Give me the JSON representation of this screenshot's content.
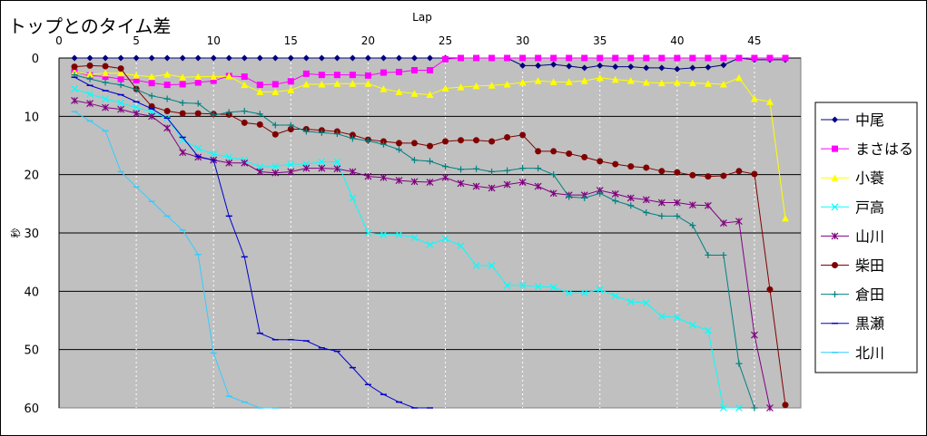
{
  "chart_data": {
    "type": "line",
    "title": "トップとのタイム差",
    "xlabel": "Lap",
    "ylabel": "秒",
    "xlim": [
      0,
      48
    ],
    "ylim": [
      0,
      60
    ],
    "y_inverted": true,
    "x_ticks": [
      0,
      5,
      10,
      15,
      20,
      25,
      30,
      35,
      40,
      45
    ],
    "y_ticks": [
      0,
      10,
      20,
      30,
      40,
      50,
      60
    ],
    "plot_background": "#c0c0c0",
    "grid": "horizontal solid, vertical dotted",
    "legend_position": "right",
    "series": [
      {
        "name": "中尾",
        "color": "#000080",
        "marker": "diamond",
        "x": [
          1,
          2,
          3,
          4,
          5,
          6,
          7,
          8,
          9,
          10,
          11,
          12,
          13,
          14,
          15,
          16,
          17,
          18,
          19,
          20,
          21,
          22,
          23,
          24,
          25,
          26,
          27,
          28,
          29,
          30,
          31,
          32,
          33,
          34,
          35,
          36,
          37,
          38,
          39,
          40,
          41,
          42,
          43,
          44,
          45,
          46,
          47
        ],
        "y": [
          0,
          0,
          0,
          0,
          0,
          0,
          0,
          0,
          0,
          0,
          0,
          0,
          0,
          0,
          0,
          0,
          0,
          0,
          0,
          0,
          0,
          0,
          0,
          0,
          0,
          0,
          0,
          0,
          0,
          1.3,
          1.3,
          1.1,
          1.4,
          1.7,
          1.3,
          1.5,
          1.5,
          1.7,
          1.7,
          1.9,
          1.7,
          1.6,
          1.2,
          0,
          0.3,
          0.3,
          0.3
        ]
      },
      {
        "name": "まさはる",
        "color": "#ff00ff",
        "marker": "square",
        "x": [
          1,
          2,
          3,
          4,
          5,
          6,
          7,
          8,
          9,
          10,
          11,
          12,
          13,
          14,
          15,
          16,
          17,
          18,
          19,
          20,
          21,
          22,
          23,
          24,
          25,
          26,
          27,
          28,
          29,
          30,
          31,
          32,
          33,
          34,
          35,
          36,
          37,
          38,
          39,
          40,
          41,
          42,
          43,
          44,
          45,
          46,
          47
        ],
        "y": [
          2.4,
          3,
          3.2,
          3.6,
          3.8,
          4.3,
          4.6,
          4.5,
          4.2,
          3.9,
          3.1,
          3.2,
          4.6,
          4.5,
          4,
          2.7,
          2.9,
          2.9,
          2.9,
          3,
          2.5,
          2.4,
          2.1,
          2.1,
          0.2,
          0,
          0,
          0,
          0,
          0,
          0,
          0,
          0,
          0,
          0,
          0,
          0,
          0,
          0,
          0,
          0,
          0,
          0,
          0,
          0,
          0,
          0
        ]
      },
      {
        "name": "小蓑",
        "color": "#ffff00",
        "marker": "triangle",
        "x": [
          1,
          2,
          3,
          4,
          5,
          6,
          7,
          8,
          9,
          10,
          11,
          12,
          13,
          14,
          15,
          16,
          17,
          18,
          19,
          20,
          21,
          22,
          23,
          24,
          25,
          26,
          27,
          28,
          29,
          30,
          31,
          32,
          33,
          34,
          35,
          36,
          37,
          38,
          39,
          40,
          41,
          42,
          43,
          44,
          45,
          46,
          47
        ],
        "y": [
          2.4,
          2.8,
          2.6,
          2.6,
          3,
          3.2,
          2.8,
          3.3,
          3.2,
          3.2,
          3.1,
          4.6,
          5.8,
          5.8,
          5.5,
          4.5,
          4.5,
          4.4,
          4.4,
          4.4,
          5.3,
          5.8,
          6.1,
          6.3,
          5.2,
          5,
          4.8,
          4.7,
          4.5,
          4.2,
          3.9,
          4.1,
          4.1,
          3.9,
          3.4,
          3.7,
          3.9,
          4.2,
          4.3,
          4.2,
          4.3,
          4.4,
          4.5,
          3.4,
          7,
          7.5,
          27.5
        ]
      },
      {
        "name": "戸高",
        "color": "#00ffff",
        "marker": "x",
        "x": [
          1,
          2,
          3,
          4,
          5,
          6,
          7,
          8,
          9,
          10,
          11,
          12,
          13,
          14,
          15,
          16,
          17,
          18,
          19,
          20,
          21,
          22,
          23,
          24,
          25,
          26,
          27,
          28,
          29,
          30,
          31,
          32,
          33,
          34,
          35,
          36,
          37,
          38,
          39,
          40,
          41,
          42,
          43,
          44
        ],
        "y": [
          5.3,
          6.2,
          7,
          7.7,
          8.5,
          9.2,
          10.3,
          14,
          15.5,
          16.5,
          17,
          17.5,
          18.7,
          18.6,
          18.2,
          18.2,
          17.8,
          17.8,
          24,
          30,
          30.3,
          30.3,
          30.8,
          32,
          31,
          32.2,
          35.6,
          35.6,
          39,
          39,
          39.2,
          39.3,
          40.3,
          40.3,
          39.7,
          40.8,
          41.8,
          42,
          44.3,
          44.5,
          45.8,
          46.7,
          60,
          60
        ]
      },
      {
        "name": "山川",
        "color": "#800080",
        "marker": "asterisk",
        "x": [
          1,
          2,
          3,
          4,
          5,
          6,
          7,
          8,
          9,
          10,
          11,
          12,
          13,
          14,
          15,
          16,
          17,
          18,
          19,
          20,
          21,
          22,
          23,
          24,
          25,
          26,
          27,
          28,
          29,
          30,
          31,
          32,
          33,
          34,
          35,
          36,
          37,
          38,
          39,
          40,
          41,
          42,
          43,
          44,
          45,
          46
        ],
        "y": [
          7.3,
          7.8,
          8.5,
          8.8,
          9.5,
          10,
          12,
          16.2,
          17,
          17.5,
          18,
          18,
          19.5,
          19.7,
          19.5,
          18.9,
          18.9,
          19,
          19.5,
          20.3,
          20.5,
          21,
          21.2,
          21.3,
          20.5,
          21.5,
          22,
          22.3,
          21.7,
          21.3,
          22,
          23.2,
          23.5,
          23.5,
          22.7,
          23.3,
          24,
          24.3,
          24.8,
          24.8,
          25.2,
          25.3,
          28.3,
          28,
          47.5,
          60
        ]
      },
      {
        "name": "柴田",
        "color": "#800000",
        "marker": "circle",
        "x": [
          1,
          2,
          3,
          4,
          5,
          6,
          7,
          8,
          9,
          10,
          11,
          12,
          13,
          14,
          15,
          16,
          17,
          18,
          19,
          20,
          21,
          22,
          23,
          24,
          25,
          26,
          27,
          28,
          29,
          30,
          31,
          32,
          33,
          34,
          35,
          36,
          37,
          38,
          39,
          40,
          41,
          42,
          43,
          44,
          45,
          46,
          47
        ],
        "y": [
          1.5,
          1.3,
          1.4,
          1.8,
          5.3,
          8.3,
          9.1,
          9.5,
          9.5,
          9.6,
          9.7,
          11.1,
          11.4,
          13.1,
          12.2,
          12.2,
          12.4,
          12.6,
          13.2,
          14,
          14.3,
          14.6,
          14.6,
          15.1,
          14.3,
          14.1,
          14.1,
          14.3,
          13.6,
          13.2,
          16,
          16,
          16.4,
          17,
          17.7,
          18.2,
          18.6,
          18.8,
          19.4,
          19.6,
          20.1,
          20.3,
          20.2,
          19.4,
          19.9,
          39.7,
          59.5
        ]
      },
      {
        "name": "倉田",
        "color": "#008080",
        "marker": "plus",
        "x": [
          1,
          2,
          3,
          4,
          5,
          6,
          7,
          8,
          9,
          10,
          11,
          12,
          13,
          14,
          15,
          16,
          17,
          18,
          19,
          20,
          21,
          22,
          23,
          24,
          25,
          26,
          27,
          28,
          29,
          30,
          31,
          32,
          33,
          34,
          35,
          36,
          37,
          38,
          39,
          40,
          41,
          42,
          43,
          44,
          45
        ],
        "y": [
          2.9,
          3.6,
          4.2,
          4.6,
          5.4,
          6.5,
          7,
          7.7,
          7.8,
          9.8,
          9.3,
          9.1,
          9.6,
          11.5,
          11.5,
          12.6,
          12.8,
          13,
          13.8,
          14.2,
          14.8,
          15.7,
          17.5,
          17.7,
          18.6,
          19.1,
          19,
          19.5,
          19.3,
          18.9,
          18.9,
          20,
          23.8,
          24,
          23.2,
          24.5,
          25.3,
          26.5,
          27.1,
          27.1,
          28.7,
          33.8,
          33.8,
          52.4,
          60
        ]
      },
      {
        "name": "黒瀬",
        "color": "#0000cc",
        "marker": "dash",
        "x": [
          1,
          2,
          3,
          4,
          5,
          6,
          7,
          8,
          9,
          10,
          11,
          12,
          13,
          14,
          15,
          16,
          17,
          18,
          19,
          20,
          21,
          22,
          23,
          24
        ],
        "y": [
          3.3,
          4.7,
          5.6,
          6.3,
          7.5,
          8.7,
          10.3,
          13.6,
          16.9,
          17.5,
          27.1,
          34.1,
          47.2,
          48.3,
          48.3,
          48.5,
          49.7,
          50.3,
          53.1,
          56,
          57.7,
          59,
          60,
          60
        ]
      },
      {
        "name": "北川",
        "color": "#33ccff",
        "marker": "dash",
        "x": [
          1,
          2,
          3,
          4,
          5,
          6,
          7,
          8,
          9,
          10,
          11,
          12,
          13,
          14
        ],
        "y": [
          9.2,
          10.8,
          12.5,
          19.5,
          22.1,
          24.6,
          27.1,
          29.5,
          33.7,
          50.6,
          58,
          59,
          60,
          60
        ]
      }
    ]
  }
}
